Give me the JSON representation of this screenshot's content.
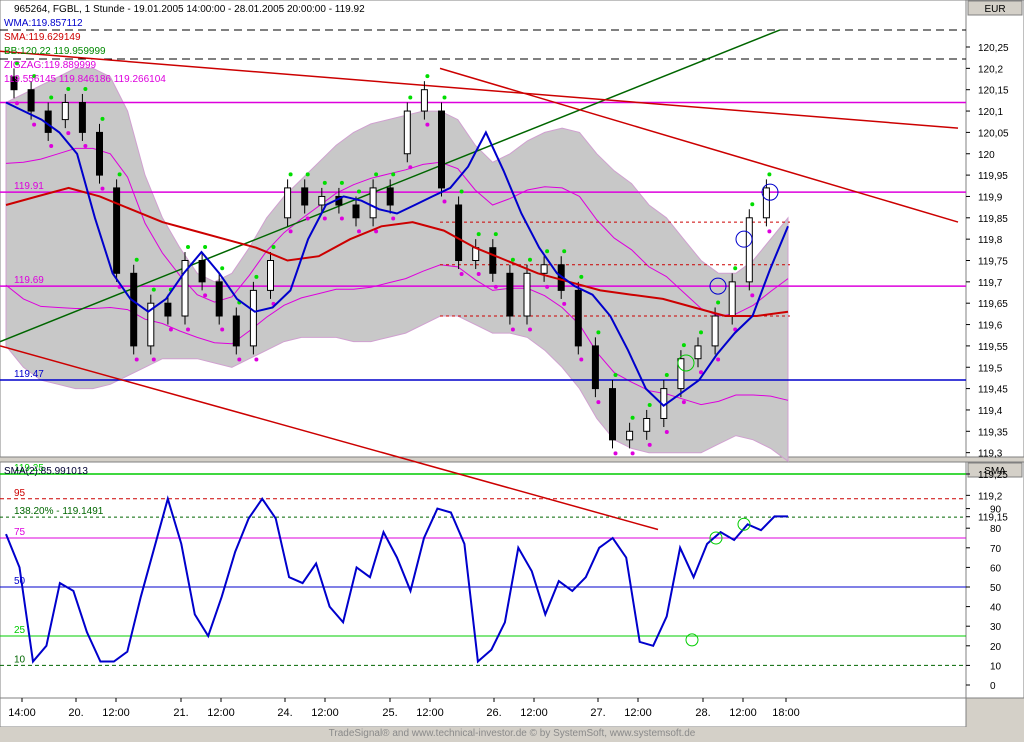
{
  "price_panel": {
    "title": "965264, FGBL, 1 Stunde - 19.01.2005 14:00:00 - 28.01.2005 20:00:00 - 119.92",
    "currency": "EUR",
    "legend": [
      {
        "text": "WMA:119.857112",
        "color": "#0000cc"
      },
      {
        "text": "SMA:119.629149",
        "color": "#cc0000"
      },
      {
        "text": "BB:120.22 119.959999",
        "color": "#008800"
      },
      {
        "text": "ZIGZAG:119.889999",
        "color": "#dd00dd"
      },
      {
        "text": "119.556145 119.846186 119.266104",
        "color": "#dd00dd"
      }
    ],
    "y_ticks": [
      "120,25",
      "120,2",
      "120,15",
      "120,1",
      "120,05",
      "120",
      "119,95",
      "119,9",
      "119,85",
      "119,8",
      "119,75",
      "119,7",
      "119,65",
      "119,6",
      "119,55",
      "119,5",
      "119,45",
      "119,4",
      "119,35",
      "119,3",
      "119,25",
      "119,2",
      "119,15"
    ],
    "hlines": [
      {
        "value": 119.91,
        "label": "119.91",
        "color": "#dd00dd"
      },
      {
        "value": 119.69,
        "label": "119.69",
        "color": "#dd00dd"
      },
      {
        "value": 119.47,
        "label": "119.47",
        "color": "#0000cc"
      },
      {
        "value": 119.25,
        "label": "119.25",
        "color": "#00cc00"
      },
      {
        "value": 119.1491,
        "label": "138.20% - 119.1491",
        "color": "#006600"
      }
    ]
  },
  "indicator_panel": {
    "title": "SMA(2):85.991013",
    "axis_name": "SMA",
    "y_ticks": [
      "90",
      "80",
      "70",
      "60",
      "50",
      "40",
      "30",
      "20",
      "10",
      "0"
    ],
    "levels": [
      {
        "value": 95,
        "label": "95",
        "color": "#cc0000"
      },
      {
        "value": 75,
        "label": "75",
        "color": "#dd00dd"
      },
      {
        "value": 50,
        "label": "50",
        "color": "#0000cc"
      },
      {
        "value": 25,
        "label": "25",
        "color": "#00cc00"
      },
      {
        "value": 10,
        "label": "10",
        "color": "#006600"
      }
    ]
  },
  "time_axis": {
    "labels": [
      "14:00",
      "20.",
      "12:00",
      "21.",
      "12:00",
      "24.",
      "12:00",
      "25.",
      "12:00",
      "26.",
      "12:00",
      "27.",
      "12:00",
      "28.",
      "12:00",
      "18:00"
    ]
  },
  "footer": "TradeSignal® and www.technical-investor.de © by SystemSoft, www.systemsoft.de",
  "chart_data": [
    {
      "type": "candlestick",
      "title": "965264, FGBL, 1 Stunde - 19.01.2005 14:00:00 - 28.01.2005 20:00:00 - 119.92",
      "ylim": [
        119.12,
        120.29
      ],
      "series": [
        {
          "name": "WMA",
          "values": [
            120.12,
            120.1,
            120.08,
            120.05,
            120.0,
            119.85,
            119.72,
            119.66,
            119.63,
            119.66,
            119.72,
            119.77,
            119.72,
            119.66,
            119.63,
            119.64,
            119.68,
            119.8,
            119.88,
            119.9,
            119.89,
            119.87,
            119.86,
            119.88,
            119.9,
            119.92,
            119.97,
            120.05,
            119.96,
            119.86,
            119.78,
            119.72,
            119.69,
            119.67,
            119.62,
            119.54,
            119.45,
            119.41,
            119.44,
            119.47,
            119.53,
            119.58,
            119.62,
            119.73,
            119.83
          ]
        },
        {
          "name": "SMA",
          "values": [
            119.88,
            119.9,
            119.92,
            119.9,
            119.87,
            119.84,
            119.82,
            119.8,
            119.78,
            119.75,
            119.76,
            119.8,
            119.83,
            119.84,
            119.82,
            119.78,
            119.75,
            119.72,
            119.7,
            119.68,
            119.67,
            119.66,
            119.64,
            119.62,
            119.62,
            119.63
          ]
        }
      ],
      "x_labels": [
        "14:00",
        "20.",
        "12:00",
        "21.",
        "12:00",
        "24.",
        "12:00",
        "25.",
        "12:00",
        "26.",
        "12:00",
        "27.",
        "12:00",
        "28.",
        "12:00",
        "18:00"
      ]
    },
    {
      "type": "line",
      "title": "SMA(2):85.991013",
      "ylim": [
        -5,
        100
      ],
      "series": [
        {
          "name": "SMA(2)",
          "values": [
            77,
            60,
            12,
            20,
            52,
            48,
            27,
            12,
            12,
            17,
            45,
            70,
            95,
            72,
            36,
            25,
            45,
            68,
            85,
            95,
            85,
            55,
            52,
            62,
            40,
            32,
            60,
            55,
            78,
            65,
            48,
            75,
            90,
            88,
            72,
            12,
            18,
            32,
            70,
            58,
            36,
            53,
            48,
            55,
            70,
            75,
            65,
            22,
            20,
            35,
            70,
            55,
            72,
            78,
            74,
            82,
            79,
            86,
            86
          ]
        }
      ]
    }
  ]
}
